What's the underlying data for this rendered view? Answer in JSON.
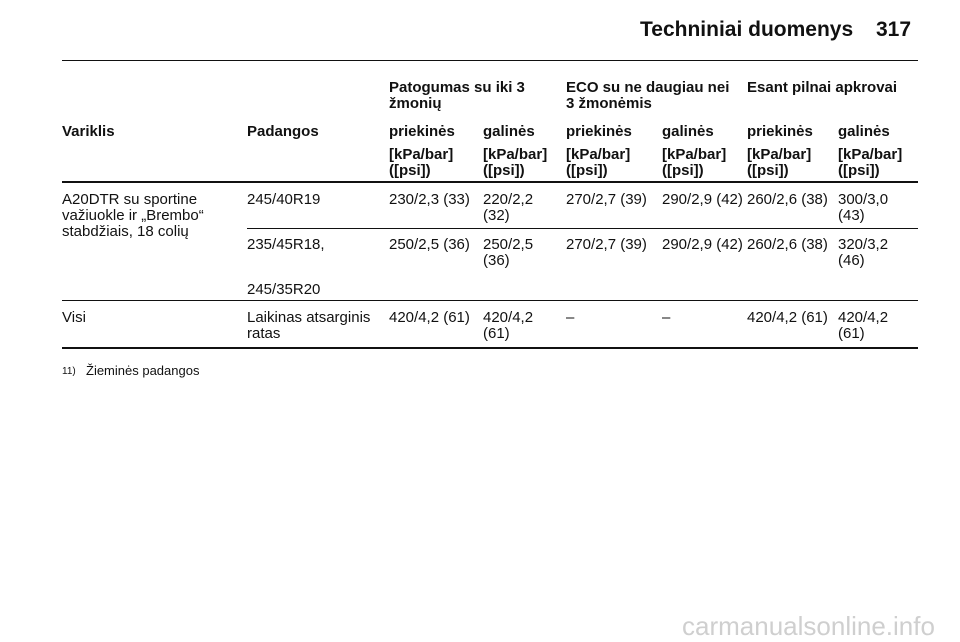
{
  "header": {
    "title": "Techniniai duomenys",
    "page": "317"
  },
  "table": {
    "group_headers": [
      "Patogumas su iki 3 žmonių",
      "ECO su ne daugiau nei 3 žmonėmis",
      "Esant pilnai apkrovai"
    ],
    "column_headers": [
      "Variklis",
      "Padangos",
      "priekinės",
      "galinės",
      "priekinės",
      "galinės",
      "priekinės",
      "galinės"
    ],
    "units": [
      "[kPa/bar] ([psi])",
      "[kPa/bar] ([psi])",
      "[kPa/bar] ([psi])",
      "[kPa/bar] ([psi])",
      "[kPa/bar] ([psi])",
      "[kPa/bar] ([psi])"
    ],
    "rows": [
      {
        "engine": "A20DTR su sportine važiuokle ir „Brembo“ stabdžiais, 18 colių",
        "tires": [
          "245/40R19"
        ],
        "values": [
          "230/2,3 (33)",
          "220/2,2 (32)",
          "270/2,7 (39)",
          "290/2,9 (42)",
          "260/2,6 (38)",
          "300/3,0 (43)"
        ]
      },
      {
        "tires": [
          "235/45R18,",
          "245/35R20"
        ],
        "values": [
          "250/2,5 (36)",
          "250/2,5 (36)",
          "270/2,7 (39)",
          "290/2,9 (42)",
          "260/2,6 (38)",
          "320/3,2 (46)"
        ]
      },
      {
        "engine": "Visi",
        "tires": [
          "Laikinas atsarginis ratas"
        ],
        "values": [
          "420/4,2 (61)",
          "420/4,2 (61)",
          "–",
          "–",
          "420/4,2 (61)",
          "420/4,2 (61)"
        ]
      }
    ]
  },
  "footnote": {
    "mark": "11)",
    "text": "Žieminės padangos"
  },
  "watermark": "carmanualsonline.info"
}
